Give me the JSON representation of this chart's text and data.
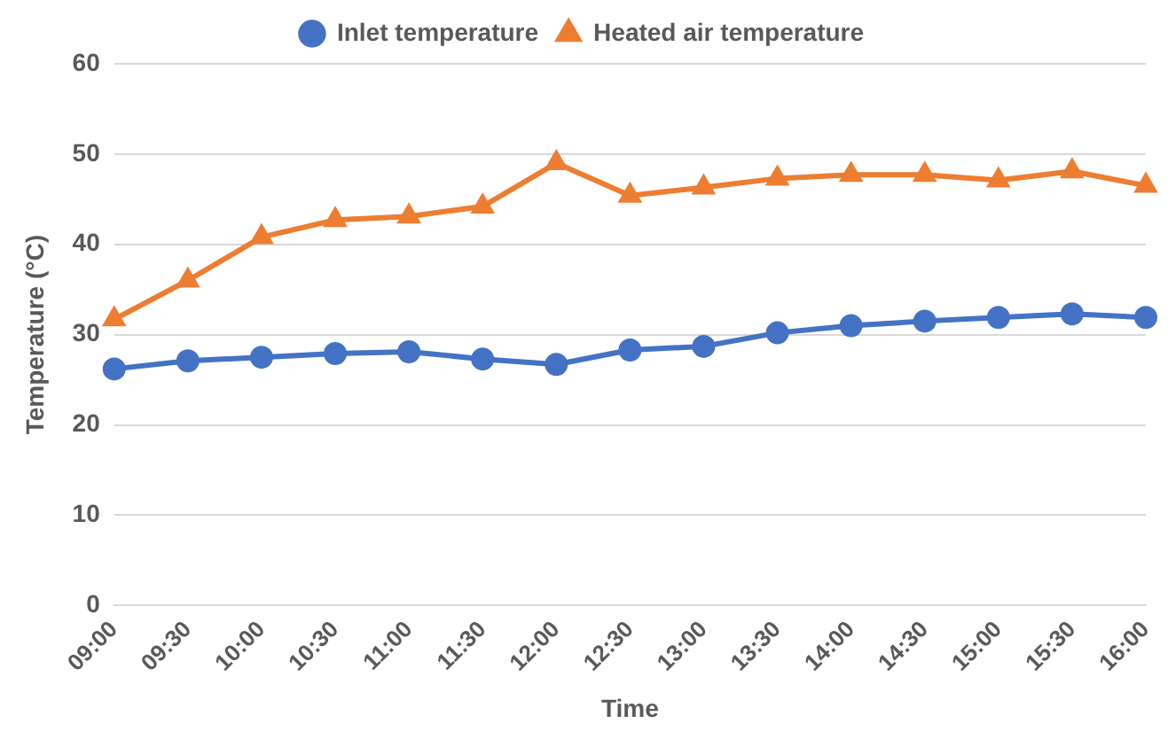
{
  "chart_data": {
    "type": "line",
    "xlabel": "Time",
    "ylabel": "Temperature (°C)",
    "categories": [
      "09:00",
      "09:30",
      "10:00",
      "10:30",
      "11:00",
      "11:30",
      "12:00",
      "12:30",
      "13:00",
      "13:30",
      "14:00",
      "14:30",
      "15:00",
      "15:30",
      "16:00"
    ],
    "series": [
      {
        "name": "Inlet temperature",
        "color": "#4472c4",
        "marker": "circle",
        "values": [
          26.2,
          27.1,
          27.5,
          27.9,
          28.1,
          27.3,
          26.7,
          28.3,
          28.7,
          30.2,
          31,
          31.5,
          31.9,
          32.3,
          31.9
        ]
      },
      {
        "name": "Heated air temperature",
        "color": "#ed7d31",
        "marker": "triangle",
        "values": [
          31.7,
          36,
          40.8,
          42.7,
          43.1,
          44.2,
          49,
          45.4,
          46.3,
          47.3,
          47.7,
          47.7,
          47.1,
          48.1,
          46.5
        ]
      }
    ],
    "ylim": [
      0,
      60
    ],
    "yticks": [
      0,
      10,
      20,
      30,
      40,
      50,
      60
    ],
    "grid": "y",
    "legend": "top",
    "line_style": "solid"
  }
}
